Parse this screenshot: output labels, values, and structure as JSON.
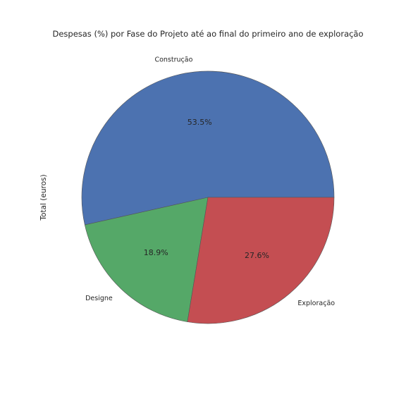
{
  "chart_data": {
    "type": "pie",
    "title": "Despesas (%) por Fase do Projeto até ao final do primeiro ano de exploração",
    "ylabel": "Total (euros)",
    "labels": [
      "Construção",
      "Designe",
      "Exploração"
    ],
    "values": [
      53.5,
      18.9,
      27.6
    ],
    "percent_labels": [
      "53.5%",
      "18.9%",
      "27.6%"
    ],
    "colors": [
      "#4C72B0",
      "#55A868",
      "#C44E52"
    ],
    "start_angle_deg": 0,
    "direction": "counterclockwise",
    "grid": false,
    "legend": "none"
  }
}
